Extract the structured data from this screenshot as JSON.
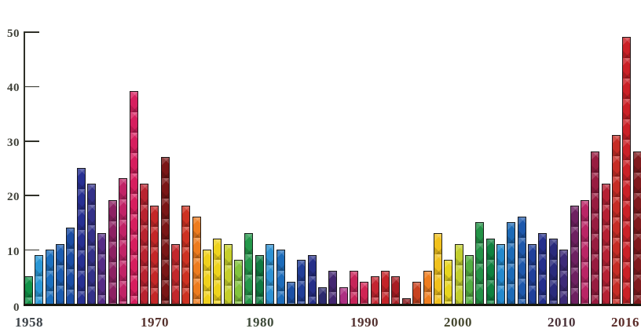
{
  "chart_data": {
    "type": "bar",
    "title": "",
    "xlabel": "",
    "ylabel": "",
    "grid": false,
    "legend": null,
    "ylim": [
      0,
      50
    ],
    "y_ticks": [
      0,
      10,
      20,
      30,
      40,
      50
    ],
    "x_tick_years": [
      1958,
      1970,
      1980,
      1990,
      2000,
      2010,
      2016
    ],
    "categories": [
      1958,
      1959,
      1960,
      1961,
      1962,
      1963,
      1964,
      1965,
      1966,
      1967,
      1968,
      1969,
      1970,
      1971,
      1972,
      1973,
      1974,
      1975,
      1976,
      1977,
      1978,
      1979,
      1980,
      1981,
      1982,
      1983,
      1984,
      1985,
      1986,
      1987,
      1988,
      1989,
      1990,
      1991,
      1992,
      1993,
      1994,
      1995,
      1996,
      1997,
      1998,
      1999,
      2000,
      2001,
      2002,
      2003,
      2004,
      2005,
      2006,
      2007,
      2008,
      2009,
      2010,
      2011,
      2012,
      2013,
      2014,
      2015,
      2016
    ],
    "values": [
      5,
      9,
      10,
      11,
      14,
      25,
      22,
      13,
      19,
      23,
      39,
      22,
      18,
      27,
      11,
      18,
      16,
      10,
      12,
      11,
      8,
      13,
      9,
      11,
      10,
      4,
      8,
      9,
      3,
      6,
      3,
      6,
      4,
      5,
      6,
      5,
      1,
      4,
      6,
      13,
      8,
      11,
      9,
      15,
      12,
      11,
      15,
      16,
      11,
      13,
      12,
      10,
      18,
      19,
      28,
      22,
      31,
      49,
      28
    ],
    "bar_colors": [
      "#119247",
      "#2a97d5",
      "#1b6fbe",
      "#1b5cb0",
      "#1c4da4",
      "#283092",
      "#343189",
      "#562c86",
      "#8c2162",
      "#c02366",
      "#d61e5e",
      "#b92330",
      "#c42728",
      "#7a1616",
      "#c2282c",
      "#cd3222",
      "#ed7c1f",
      "#efd01d",
      "#eed31d",
      "#c6cf2b",
      "#83c43e",
      "#24984a",
      "#107a41",
      "#2e92d3",
      "#1d6cba",
      "#1d50a5",
      "#223e97",
      "#262f88",
      "#2c2a6d",
      "#432670",
      "#ad2f82",
      "#c62459",
      "#d02454",
      "#c32531",
      "#c32429",
      "#a81e24",
      "#871418",
      "#c8421f",
      "#ee7d1f",
      "#f1c11d",
      "#e8d51e",
      "#c3cf2e",
      "#53ad41",
      "#239246",
      "#10813f",
      "#2489cd",
      "#1d6ab6",
      "#1e58ab",
      "#20409a",
      "#242f8c",
      "#2a2b7c",
      "#3d2a78",
      "#6e2161",
      "#b92565",
      "#971c40",
      "#b52134",
      "#c62d26",
      "#cb2127",
      "#801a1e"
    ]
  },
  "axes": {
    "y_labels": [
      {
        "text": "50",
        "value": 50
      },
      {
        "text": "40",
        "value": 40
      },
      {
        "text": "30",
        "value": 30
      },
      {
        "text": "20",
        "value": 20
      },
      {
        "text": "10",
        "value": 10
      },
      {
        "text": "0",
        "value": 0
      }
    ],
    "x_labels": [
      {
        "text": "1958",
        "color": "#3d4349"
      },
      {
        "text": "1970",
        "color": "#55312c"
      },
      {
        "text": "1980",
        "color": "#3e4a39"
      },
      {
        "text": "1990",
        "color": "#52302e"
      },
      {
        "text": "2000",
        "color": "#45472f"
      },
      {
        "text": "2010",
        "color": "#493138"
      },
      {
        "text": "2016",
        "color": "#5a2b28"
      }
    ]
  }
}
